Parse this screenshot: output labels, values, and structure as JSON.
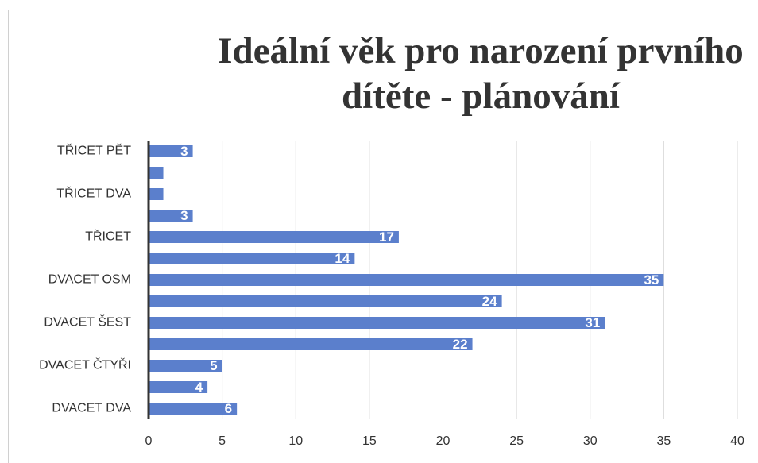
{
  "chart_data": {
    "type": "barh",
    "title": "Ideální věk pro narození prvního dítěte - plánování",
    "categories": [
      "DVACET DVA",
      null,
      "DVACET ČTYŘI",
      null,
      "DVACET ŠEST",
      null,
      "DVACET OSM",
      null,
      "TŘICET",
      null,
      "TŘICET DVA",
      null,
      "TŘICET PĚT"
    ],
    "values": [
      6,
      4,
      5,
      22,
      31,
      24,
      35,
      14,
      17,
      3,
      1,
      1,
      3
    ],
    "value_labels": [
      "6",
      "4",
      "5",
      "22",
      "31",
      "24",
      "35",
      "14",
      "17",
      "3",
      null,
      null,
      "3"
    ],
    "color": "#5b7fcc",
    "xlim": [
      0,
      40
    ],
    "xticks": [
      0,
      5,
      10,
      15,
      20,
      25,
      30,
      35,
      40
    ],
    "grid": true
  }
}
